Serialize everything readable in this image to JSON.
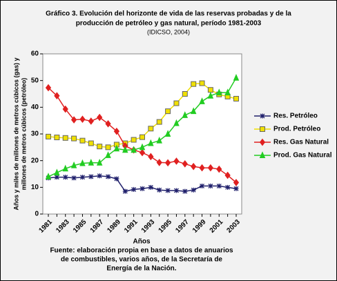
{
  "chart_data": {
    "type": "line",
    "title": [
      "Gráfico 3. Evolución del horizonte de vida de las reservas probadas y de la",
      "producción de petróleo y gas natural, período 1981-2003"
    ],
    "subtitle": "(IDICSO, 2004)",
    "ylabel": [
      "Años y miles de millones de metros cúbicos (gas) y",
      "millones de metros cúbicos (petróleo)"
    ],
    "xlabel": "Años",
    "source": [
      "Fuente: elaboración propia en base a datos de anuarios",
      "de combustibles, varios años, de la Secretaría de",
      "Energía de la Nación."
    ],
    "categories": [
      "1981",
      null,
      "1983",
      null,
      "1985",
      null,
      "1987",
      null,
      "1989",
      null,
      "1991",
      null,
      "1993",
      null,
      "1995",
      null,
      "1997",
      null,
      "1999",
      null,
      "2001",
      null,
      "2003"
    ],
    "ylim": [
      0,
      60
    ],
    "yticks": [
      0,
      10,
      20,
      30,
      40,
      50,
      60
    ],
    "series": [
      {
        "name": "Res. Petróleo",
        "color": "#1f1f6b",
        "marker": "star",
        "values": [
          13.5,
          13.8,
          13.8,
          13.5,
          13.8,
          14.0,
          14.3,
          14.0,
          13.2,
          8.5,
          9.2,
          9.5,
          10,
          9,
          8.8,
          8.8,
          8.5,
          9,
          10.5,
          10.5,
          10.5,
          10,
          9.5
        ]
      },
      {
        "name": "Prod. Petróleo",
        "color": "#f0e000",
        "marker": "square",
        "values": [
          29,
          28.7,
          28.5,
          28.3,
          27.5,
          26.5,
          25.3,
          25,
          26,
          26.5,
          27.8,
          28.8,
          32,
          34.5,
          38.5,
          41.5,
          45,
          48.7,
          49,
          46.5,
          44.8,
          44,
          43.2
        ]
      },
      {
        "name": "Res. Gas Natural",
        "color": "#e02020",
        "marker": "diamond",
        "values": [
          47.3,
          44.3,
          39.3,
          35.3,
          35.5,
          34.8,
          36.2,
          33.8,
          31,
          25.5,
          24,
          23,
          21.5,
          19.3,
          19.2,
          19.8,
          18.8,
          17.8,
          17.3,
          17.3,
          16.8,
          14.5,
          11.8
        ]
      },
      {
        "name": "Prod. Gas Natural",
        "color": "#22cc22",
        "marker": "triangle",
        "values": [
          14,
          15.5,
          17,
          18.2,
          19,
          19.2,
          19.2,
          22,
          24.5,
          24,
          24,
          25,
          26.5,
          27.5,
          30,
          34,
          37,
          38.5,
          42.2,
          44.3,
          45.5,
          45.5,
          51
        ]
      }
    ]
  }
}
